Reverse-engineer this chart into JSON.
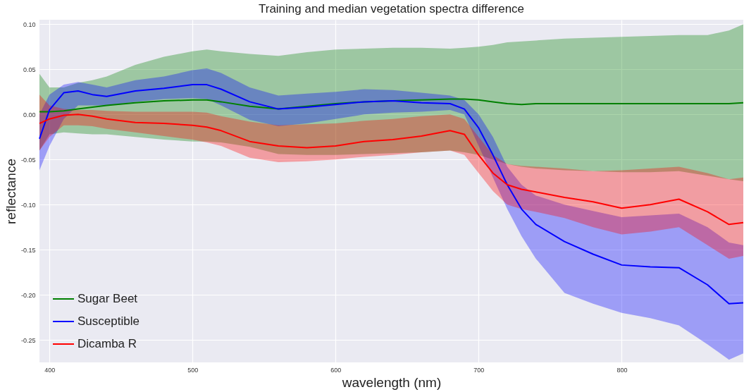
{
  "chart_data": {
    "type": "line",
    "title": "Training and median vegetation spectra difference",
    "xlabel": "wavelength (nm)",
    "ylabel": "reflectance",
    "x": [
      393,
      400,
      410,
      420,
      430,
      440,
      460,
      480,
      500,
      510,
      520,
      540,
      560,
      580,
      600,
      620,
      640,
      660,
      680,
      690,
      700,
      710,
      720,
      730,
      740,
      760,
      780,
      800,
      820,
      840,
      860,
      875,
      885
    ],
    "series": [
      {
        "name": "Sugar Beet",
        "color": "#008000",
        "values": [
          0.003,
          0.003,
          0.004,
          0.006,
          0.008,
          0.01,
          0.013,
          0.015,
          0.016,
          0.016,
          0.014,
          0.009,
          0.006,
          0.009,
          0.012,
          0.014,
          0.015,
          0.016,
          0.017,
          0.017,
          0.016,
          0.014,
          0.012,
          0.011,
          0.012,
          0.012,
          0.012,
          0.012,
          0.012,
          0.012,
          0.012,
          0.012,
          0.013
        ],
        "upper": [
          0.045,
          0.03,
          0.03,
          0.035,
          0.038,
          0.042,
          0.055,
          0.064,
          0.07,
          0.072,
          0.07,
          0.067,
          0.065,
          0.069,
          0.072,
          0.073,
          0.074,
          0.074,
          0.073,
          0.074,
          0.075,
          0.077,
          0.08,
          0.081,
          0.082,
          0.084,
          0.085,
          0.086,
          0.087,
          0.088,
          0.088,
          0.093,
          0.1
        ],
        "lower": [
          -0.04,
          -0.022,
          -0.02,
          -0.021,
          -0.022,
          -0.022,
          -0.025,
          -0.028,
          -0.03,
          -0.03,
          -0.031,
          -0.036,
          -0.044,
          -0.045,
          -0.045,
          -0.044,
          -0.043,
          -0.042,
          -0.04,
          -0.042,
          -0.045,
          -0.05,
          -0.055,
          -0.058,
          -0.06,
          -0.062,
          -0.063,
          -0.064,
          -0.064,
          -0.063,
          -0.068,
          -0.072,
          -0.074
        ]
      },
      {
        "name": "Susceptible",
        "color": "#0000ff",
        "values": [
          -0.027,
          0.005,
          0.024,
          0.026,
          0.022,
          0.02,
          0.026,
          0.029,
          0.033,
          0.033,
          0.028,
          0.014,
          0.006,
          0.008,
          0.011,
          0.014,
          0.015,
          0.013,
          0.012,
          0.006,
          -0.015,
          -0.045,
          -0.078,
          -0.105,
          -0.122,
          -0.141,
          -0.155,
          -0.167,
          -0.169,
          -0.17,
          -0.189,
          -0.21,
          -0.209
        ],
        "upper": [
          0.0,
          0.022,
          0.033,
          0.036,
          0.033,
          0.03,
          0.038,
          0.042,
          0.049,
          0.051,
          0.046,
          0.03,
          0.021,
          0.023,
          0.025,
          0.028,
          0.027,
          0.024,
          0.021,
          0.016,
          0.0,
          -0.025,
          -0.058,
          -0.078,
          -0.09,
          -0.1,
          -0.107,
          -0.114,
          -0.112,
          -0.11,
          -0.125,
          -0.142,
          -0.145
        ],
        "lower": [
          -0.062,
          -0.035,
          -0.005,
          0.01,
          0.01,
          0.01,
          0.014,
          0.017,
          0.018,
          0.017,
          0.01,
          -0.006,
          -0.013,
          -0.01,
          -0.005,
          0.0,
          0.002,
          0.003,
          0.005,
          0.0,
          -0.035,
          -0.07,
          -0.105,
          -0.135,
          -0.16,
          -0.198,
          -0.21,
          -0.22,
          -0.226,
          -0.234,
          -0.255,
          -0.272,
          -0.265
        ]
      },
      {
        "name": "Dicamba R",
        "color": "#ff0000",
        "values": [
          -0.01,
          -0.005,
          -0.001,
          0.0,
          -0.002,
          -0.005,
          -0.009,
          -0.01,
          -0.012,
          -0.014,
          -0.018,
          -0.03,
          -0.035,
          -0.037,
          -0.035,
          -0.03,
          -0.028,
          -0.024,
          -0.018,
          -0.022,
          -0.045,
          -0.065,
          -0.078,
          -0.083,
          -0.086,
          -0.092,
          -0.097,
          -0.104,
          -0.1,
          -0.094,
          -0.108,
          -0.122,
          -0.12
        ],
        "upper": [
          0.022,
          0.01,
          0.006,
          0.005,
          0.005,
          0.004,
          0.003,
          0.003,
          0.003,
          0.002,
          -0.002,
          -0.008,
          -0.012,
          -0.011,
          -0.01,
          -0.007,
          -0.005,
          -0.002,
          0.0,
          -0.005,
          -0.025,
          -0.045,
          -0.055,
          -0.057,
          -0.058,
          -0.06,
          -0.063,
          -0.062,
          -0.06,
          -0.058,
          -0.065,
          -0.072,
          -0.07
        ],
        "lower": [
          -0.04,
          -0.025,
          -0.012,
          -0.012,
          -0.013,
          -0.016,
          -0.02,
          -0.024,
          -0.028,
          -0.031,
          -0.035,
          -0.048,
          -0.053,
          -0.052,
          -0.05,
          -0.047,
          -0.045,
          -0.042,
          -0.04,
          -0.045,
          -0.065,
          -0.085,
          -0.1,
          -0.105,
          -0.108,
          -0.115,
          -0.125,
          -0.133,
          -0.13,
          -0.125,
          -0.145,
          -0.16,
          -0.157
        ]
      }
    ],
    "xlim": [
      393,
      885
    ],
    "xticks": [
      400,
      500,
      600,
      700,
      800
    ],
    "ylim": [
      -0.275,
      0.105
    ],
    "yticks": [
      {
        "value": -0.25,
        "label": "-0.25"
      },
      {
        "value": -0.2,
        "label": "-0.20"
      },
      {
        "value": -0.15,
        "label": "-0.15"
      },
      {
        "value": -0.1,
        "label": "-0.10"
      },
      {
        "value": -0.05,
        "label": "-0.05"
      },
      {
        "value": 0,
        "label": "0.00"
      },
      {
        "value": 0.05,
        "label": "0.05"
      },
      {
        "value": 0.1,
        "label": "0.10"
      }
    ],
    "grid": true,
    "legend": "bottom left",
    "line_style": "solid"
  }
}
